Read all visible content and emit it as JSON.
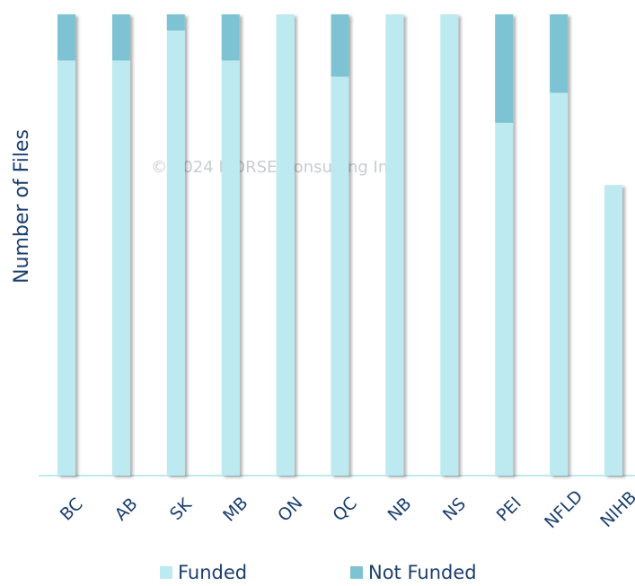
{
  "chart_data": {
    "type": "bar",
    "stacked": true,
    "y_label": "Number of Files",
    "annotation": "© 2024 MORSE Consulting Inc.",
    "categories": [
      "BC",
      "AB",
      "SK",
      "MB",
      "ON",
      "QC",
      "NB",
      "NS",
      "PEI",
      "NFLD",
      "NIHB"
    ],
    "series": [
      {
        "name": "Funded",
        "color": "#bde9f0",
        "values": [
          90,
          90,
          96.5,
          90,
          100,
          86.5,
          100,
          100,
          76.5,
          83,
          63
        ]
      },
      {
        "name": "Not Funded",
        "color": "#7ec3d3",
        "values": [
          10,
          10,
          3.5,
          10,
          0,
          13.5,
          0,
          0,
          23.5,
          17,
          0
        ]
      }
    ],
    "ylim": [
      0,
      100
    ]
  }
}
